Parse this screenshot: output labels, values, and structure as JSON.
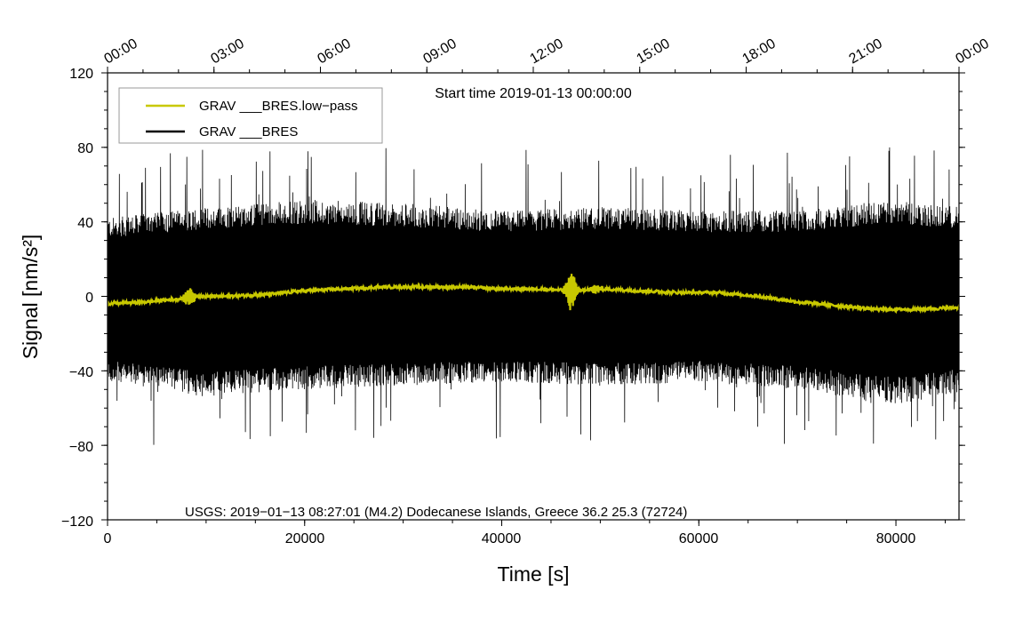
{
  "chart_data": {
    "type": "line",
    "title": "Start time 2019-01-13 00:00:00",
    "xlabel": "Time [s]",
    "ylabel": "Signal [nm/s²]",
    "xlim": [
      0,
      86400
    ],
    "ylim": [
      -120,
      120
    ],
    "x_ticks": [
      0,
      20000,
      40000,
      60000,
      80000
    ],
    "x_tick_labels": [
      "0",
      "20000",
      "40000",
      "60000",
      "80000"
    ],
    "y_ticks": [
      -120,
      -80,
      -40,
      0,
      40,
      80,
      120
    ],
    "y_tick_labels": [
      "−120",
      "−80",
      "−40",
      "0",
      "40",
      "80",
      "120"
    ],
    "top_axis": {
      "tick_seconds": [
        0,
        10800,
        21600,
        32400,
        43200,
        54000,
        64800,
        75600,
        86400
      ],
      "labels": [
        "00:00",
        "03:00",
        "06:00",
        "09:00",
        "12:00",
        "15:00",
        "18:00",
        "21:00",
        "00:00"
      ]
    },
    "legend_location": "top-left",
    "series": [
      {
        "name": "GRAV ___BRES.low−pass",
        "color": "#c8c800",
        "x": [
          0,
          4000,
          8000,
          8500,
          12000,
          16000,
          20000,
          24000,
          28000,
          32000,
          36000,
          40000,
          44000,
          47000,
          50000,
          54000,
          58000,
          62000,
          66000,
          70000,
          74000,
          78000,
          82000,
          86400
        ],
        "y": [
          -4,
          -3,
          -1,
          0,
          0,
          1,
          3,
          4,
          5,
          5,
          5,
          4,
          4,
          3,
          4,
          3,
          2,
          2,
          0,
          -3,
          -5,
          -7,
          -7,
          -6
        ],
        "bursts": [
          {
            "center": 8300,
            "amplitude": 6
          },
          {
            "center": 47000,
            "amplitude": 11
          },
          {
            "center": 49500,
            "amplitude": 3
          }
        ]
      },
      {
        "name": "GRAV ___BRES",
        "color": "#000000",
        "x": [
          0,
          10000,
          20000,
          30000,
          40000,
          50000,
          60000,
          70000,
          80000,
          86400
        ],
        "upper_envelope": [
          42,
          48,
          52,
          50,
          46,
          48,
          46,
          46,
          52,
          48
        ],
        "lower_envelope": [
          -46,
          -54,
          -50,
          -48,
          -46,
          -48,
          -46,
          -50,
          -58,
          -52
        ],
        "peak_max": 80,
        "peak_min": -80
      }
    ],
    "annotation": "USGS: 2019−01−13 08:27:01 (M4.2) Dodecanese Islands, Greece 36.2 25.3 (72724)"
  }
}
